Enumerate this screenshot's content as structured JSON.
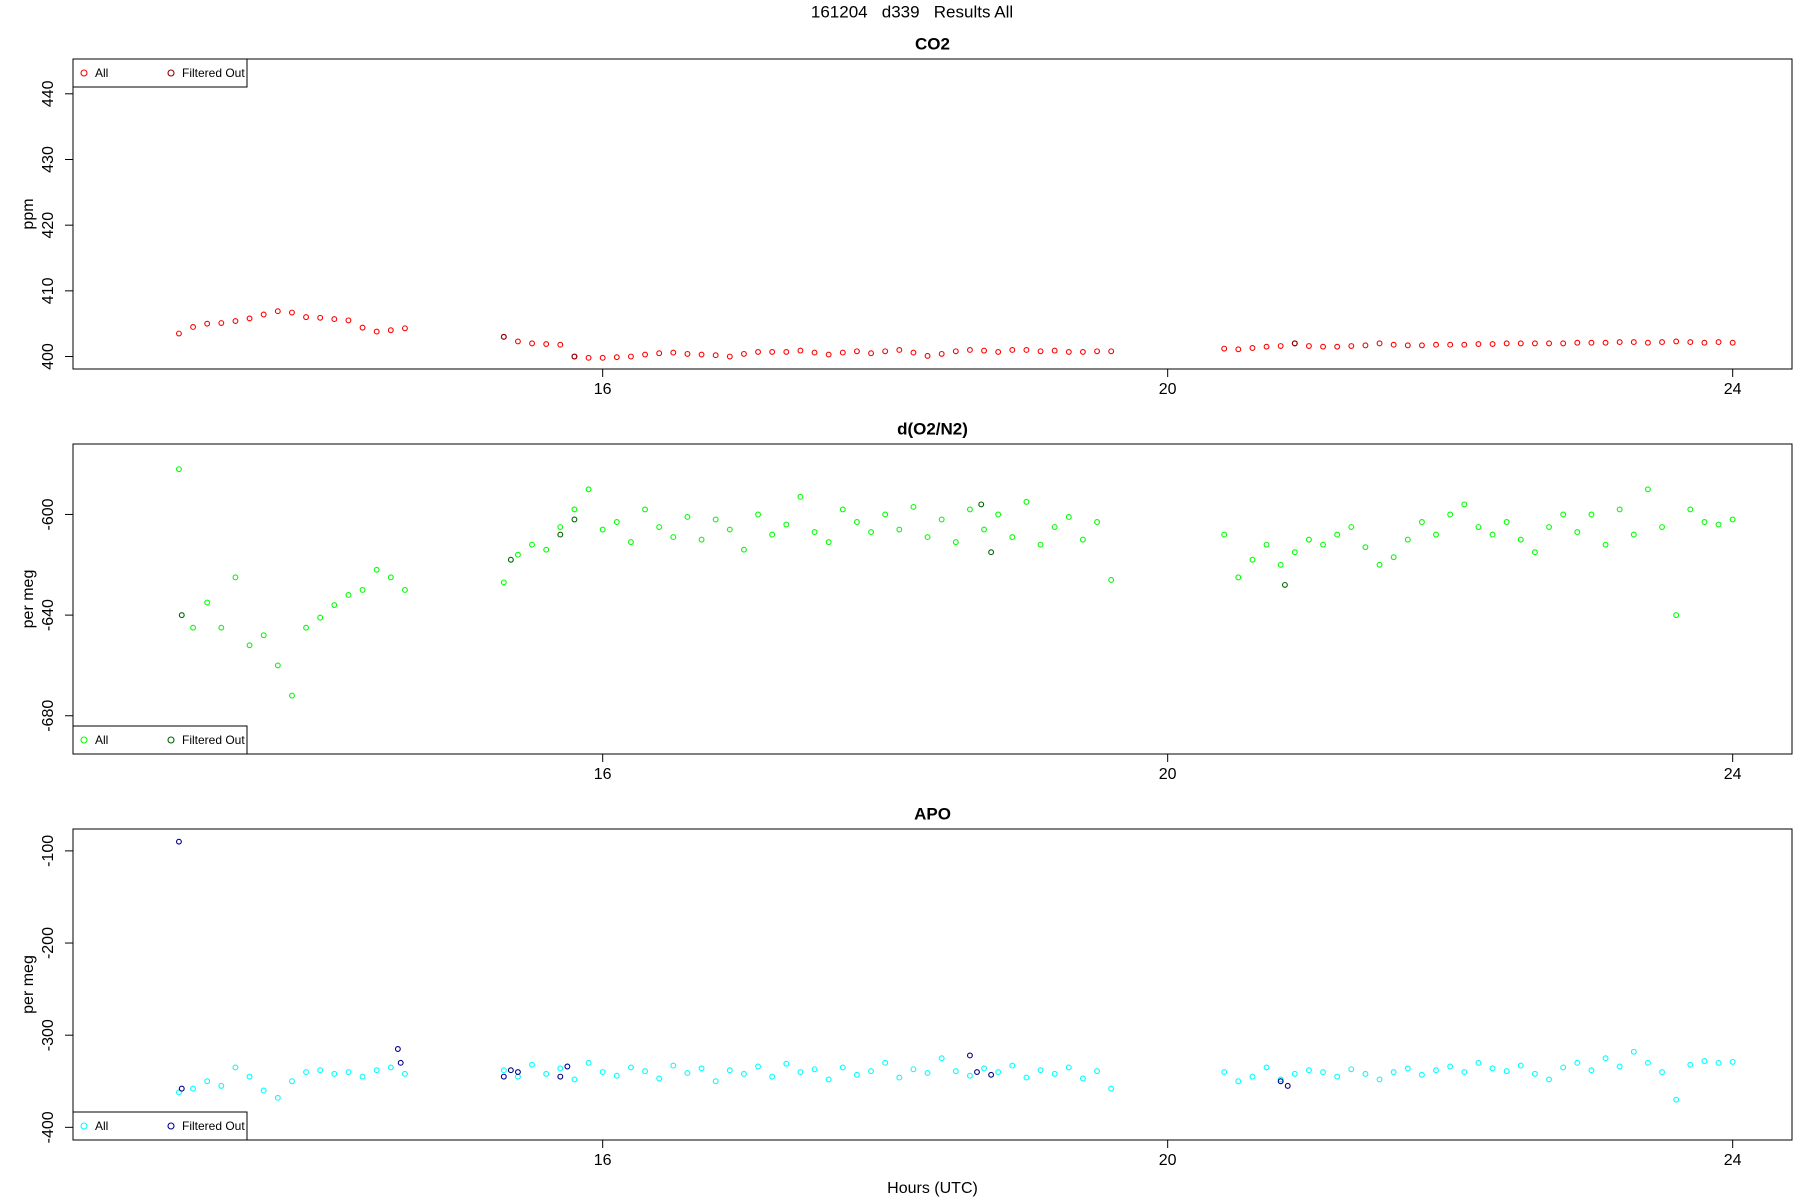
{
  "title": "161204   d339   Results All",
  "chart_data": [
    {
      "type": "scatter",
      "title": "CO2",
      "y_label": "ppm",
      "legend": "topleft",
      "xlim": [
        12.25,
        24.42
      ],
      "xticks": [
        16,
        20,
        24
      ],
      "ylim": [
        398.1,
        445.3
      ],
      "yticks": [
        400,
        410,
        420,
        430,
        440
      ],
      "series": [
        {
          "name": "All",
          "color": "#ff0000",
          "x": [
            13.0,
            13.1,
            13.2,
            13.3,
            13.4,
            13.5,
            13.6,
            13.7,
            13.8,
            13.9,
            14.0,
            14.1,
            14.2,
            14.3,
            14.4,
            14.5,
            14.6,
            15.3,
            15.4,
            15.5,
            15.6,
            15.7,
            15.8,
            15.9,
            16.0,
            16.1,
            16.2,
            16.3,
            16.4,
            16.5,
            16.6,
            16.7,
            16.8,
            16.9,
            17.0,
            17.1,
            17.2,
            17.3,
            17.4,
            17.5,
            17.6,
            17.7,
            17.8,
            17.9,
            18.0,
            18.1,
            18.2,
            18.3,
            18.4,
            18.5,
            18.6,
            18.7,
            18.8,
            18.9,
            19.0,
            19.1,
            19.2,
            19.3,
            19.4,
            19.5,
            19.6,
            20.4,
            20.5,
            20.6,
            20.7,
            20.8,
            20.9,
            21.0,
            21.1,
            21.2,
            21.3,
            21.4,
            21.5,
            21.6,
            21.7,
            21.8,
            21.9,
            22.0,
            22.1,
            22.2,
            22.3,
            22.4,
            22.5,
            22.6,
            22.7,
            22.8,
            22.9,
            23.0,
            23.1,
            23.2,
            23.3,
            23.4,
            23.5,
            23.6,
            23.7,
            23.8,
            23.9,
            24.0
          ],
          "values": [
            403.5,
            404.5,
            405.0,
            405.1,
            405.4,
            405.8,
            406.4,
            406.9,
            406.7,
            406.0,
            405.9,
            405.7,
            405.5,
            404.4,
            403.8,
            404.0,
            404.3,
            403.0,
            402.3,
            402.0,
            401.9,
            401.8,
            400.0,
            399.8,
            399.8,
            399.9,
            400.0,
            400.3,
            400.5,
            400.6,
            400.4,
            400.3,
            400.2,
            400.0,
            400.4,
            400.7,
            400.7,
            400.7,
            400.9,
            400.6,
            400.3,
            400.6,
            400.8,
            400.5,
            400.8,
            401.0,
            400.6,
            400.1,
            400.4,
            400.8,
            401.0,
            400.9,
            400.7,
            401.0,
            401.0,
            400.8,
            400.9,
            400.7,
            400.7,
            400.8,
            400.8,
            401.2,
            401.1,
            401.3,
            401.5,
            401.6,
            402.0,
            401.6,
            401.5,
            401.5,
            401.6,
            401.7,
            402.0,
            401.8,
            401.7,
            401.7,
            401.8,
            401.8,
            401.8,
            401.9,
            401.9,
            402.0,
            402.0,
            402.0,
            402.0,
            402.0,
            402.1,
            402.1,
            402.1,
            402.2,
            402.2,
            402.1,
            402.2,
            402.3,
            402.2,
            402.1,
            402.2,
            402.1
          ]
        },
        {
          "name": "Filtered Out",
          "color": "#8b0000",
          "x": [
            15.3,
            15.8,
            20.9
          ],
          "values": [
            403.0,
            400.0,
            402.0
          ]
        }
      ]
    },
    {
      "type": "scatter",
      "title": "d(O2/N2)",
      "y_label": "per meg",
      "legend": "bottomleft",
      "xlim": [
        12.25,
        24.42
      ],
      "xticks": [
        16,
        20,
        24
      ],
      "ylim": [
        -695.2,
        -572
      ],
      "yticks": [
        -680,
        -640,
        -600
      ],
      "series": [
        {
          "name": "All",
          "color": "#00ff00",
          "x": [
            13.0,
            13.1,
            13.2,
            13.3,
            13.4,
            13.5,
            13.6,
            13.7,
            13.8,
            13.9,
            14.0,
            14.1,
            14.2,
            14.3,
            14.4,
            14.5,
            14.6,
            15.3,
            15.4,
            15.5,
            15.6,
            15.7,
            15.8,
            15.9,
            16.0,
            16.1,
            16.2,
            16.3,
            16.4,
            16.5,
            16.6,
            16.7,
            16.8,
            16.9,
            17.0,
            17.1,
            17.2,
            17.3,
            17.4,
            17.5,
            17.6,
            17.7,
            17.8,
            17.9,
            18.0,
            18.1,
            18.2,
            18.3,
            18.4,
            18.5,
            18.6,
            18.7,
            18.8,
            18.9,
            19.0,
            19.1,
            19.2,
            19.3,
            19.4,
            19.5,
            19.6,
            20.4,
            20.5,
            20.6,
            20.7,
            20.8,
            20.9,
            21.0,
            21.1,
            21.2,
            21.3,
            21.4,
            21.5,
            21.6,
            21.7,
            21.8,
            21.9,
            22.0,
            22.1,
            22.2,
            22.3,
            22.4,
            22.5,
            22.6,
            22.7,
            22.8,
            22.9,
            23.0,
            23.1,
            23.2,
            23.3,
            23.4,
            23.5,
            23.6,
            23.7,
            23.8,
            23.9,
            24.0
          ],
          "values": [
            -582,
            -645,
            -635,
            -645,
            -625,
            -652,
            -648,
            -660,
            -672,
            -645,
            -641,
            -636,
            -632,
            -630,
            -622,
            -625,
            -630,
            -627,
            -616,
            -612,
            -614,
            -605,
            -598,
            -590,
            -606,
            -603,
            -611,
            -598,
            -605,
            -609,
            -601,
            -610,
            -602,
            -606,
            -614,
            -600,
            -608,
            -604,
            -593,
            -607,
            -611,
            -598,
            -603,
            -607,
            -600,
            -606,
            -597,
            -609,
            -602,
            -611,
            -598,
            -606,
            -600,
            -609,
            -595,
            -612,
            -605,
            -601,
            -610,
            -603,
            -626,
            -608,
            -625,
            -618,
            -612,
            -620,
            -615,
            -610,
            -612,
            -608,
            -605,
            -613,
            -620,
            -617,
            -610,
            -603,
            -608,
            -600,
            -596,
            -605,
            -608,
            -603,
            -610,
            -615,
            -605,
            -600,
            -607,
            -600,
            -612,
            -598,
            -608,
            -590,
            -605,
            -640,
            -598,
            -603,
            -604,
            -602
          ]
        },
        {
          "name": "Filtered Out",
          "color": "#006400",
          "x": [
            13.02,
            15.35,
            15.7,
            15.8,
            18.68,
            18.75,
            20.83
          ],
          "values": [
            -640,
            -618,
            -608,
            -602,
            -596,
            -615,
            -628
          ]
        }
      ]
    },
    {
      "type": "scatter",
      "title": "APO",
      "y_label": "per meg",
      "x_label": "Hours (UTC)",
      "legend": "bottomleft",
      "xlim": [
        12.25,
        24.42
      ],
      "xticks": [
        16,
        20,
        24
      ],
      "ylim": [
        -413.75,
        -76.25
      ],
      "yticks": [
        -400,
        -300,
        -200,
        -100
      ],
      "series": [
        {
          "name": "All",
          "color": "#00ffff",
          "x": [
            13.0,
            13.1,
            13.2,
            13.3,
            13.4,
            13.5,
            13.6,
            13.7,
            13.8,
            13.9,
            14.0,
            14.1,
            14.2,
            14.3,
            14.4,
            14.5,
            14.6,
            15.3,
            15.4,
            15.5,
            15.6,
            15.7,
            15.8,
            15.9,
            16.0,
            16.1,
            16.2,
            16.3,
            16.4,
            16.5,
            16.6,
            16.7,
            16.8,
            16.9,
            17.0,
            17.1,
            17.2,
            17.3,
            17.4,
            17.5,
            17.6,
            17.7,
            17.8,
            17.9,
            18.0,
            18.1,
            18.2,
            18.3,
            18.4,
            18.5,
            18.6,
            18.7,
            18.8,
            18.9,
            19.0,
            19.1,
            19.2,
            19.3,
            19.4,
            19.5,
            19.6,
            20.4,
            20.5,
            20.6,
            20.7,
            20.8,
            20.9,
            21.0,
            21.1,
            21.2,
            21.3,
            21.4,
            21.5,
            21.6,
            21.7,
            21.8,
            21.9,
            22.0,
            22.1,
            22.2,
            22.3,
            22.4,
            22.5,
            22.6,
            22.7,
            22.8,
            22.9,
            23.0,
            23.1,
            23.2,
            23.3,
            23.4,
            23.5,
            23.6,
            23.7,
            23.8,
            23.9,
            24.0
          ],
          "values": [
            -362,
            -358,
            -350,
            -355,
            -335,
            -345,
            -360,
            -368,
            -350,
            -340,
            -338,
            -342,
            -340,
            -345,
            -338,
            -335,
            -342,
            -338,
            -345,
            -332,
            -342,
            -336,
            -348,
            -330,
            -340,
            -344,
            -335,
            -339,
            -347,
            -333,
            -341,
            -336,
            -350,
            -338,
            -342,
            -334,
            -345,
            -331,
            -340,
            -337,
            -348,
            -335,
            -343,
            -339,
            -330,
            -346,
            -337,
            -341,
            -325,
            -339,
            -344,
            -336,
            -340,
            -333,
            -346,
            -338,
            -342,
            -335,
            -347,
            -339,
            -358,
            -340,
            -350,
            -345,
            -335,
            -348,
            -342,
            -338,
            -340,
            -345,
            -337,
            -342,
            -348,
            -340,
            -336,
            -343,
            -338,
            -334,
            -340,
            -330,
            -336,
            -339,
            -333,
            -342,
            -348,
            -335,
            -330,
            -338,
            -325,
            -334,
            -318,
            -330,
            -340,
            -370,
            -332,
            -328,
            -330,
            -329
          ]
        },
        {
          "name": "Filtered Out",
          "color": "#00008b",
          "x": [
            13.0,
            13.02,
            14.55,
            14.57,
            15.3,
            15.35,
            15.4,
            15.7,
            15.75,
            18.6,
            18.65,
            18.75,
            20.8,
            20.85
          ],
          "values": [
            -90,
            -358,
            -315,
            -330,
            -345,
            -338,
            -340,
            -345,
            -334,
            -322,
            -340,
            -343,
            -350,
            -355
          ]
        }
      ]
    }
  ]
}
